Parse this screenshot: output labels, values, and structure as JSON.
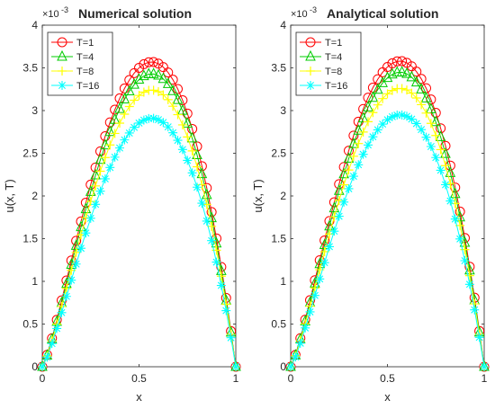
{
  "chart_data": [
    {
      "type": "line",
      "title": "Numerical solution",
      "xlabel": "x",
      "ylabel": "u(x, T)",
      "exponent_base": "×10",
      "exponent_power": "-3",
      "xlim": [
        0,
        1
      ],
      "ylim": [
        0,
        4
      ],
      "xticks": [
        "0",
        "0.5",
        "1"
      ],
      "yticks": [
        "0",
        "0.5",
        "1",
        "1.5",
        "2",
        "2.5",
        "3",
        "3.5",
        "4"
      ],
      "legend_position": "top-left",
      "grid": false,
      "series": [
        {
          "name": "T=1",
          "color": "#ff0000",
          "marker": "circle",
          "peak": 3.57
        },
        {
          "name": "T=4",
          "color": "#00cc00",
          "marker": "triangle",
          "peak": 3.43
        },
        {
          "name": "T=8",
          "color": "#ffff00",
          "marker": "plus",
          "peak": 3.24
        },
        {
          "name": "T=16",
          "color": "#00ffff",
          "marker": "star",
          "peak": 2.91
        }
      ],
      "x": [
        0,
        0.025,
        0.05,
        0.075,
        0.1,
        0.125,
        0.15,
        0.175,
        0.2,
        0.225,
        0.25,
        0.275,
        0.3,
        0.325,
        0.35,
        0.375,
        0.4,
        0.425,
        0.45,
        0.475,
        0.5,
        0.525,
        0.55,
        0.575,
        0.6,
        0.625,
        0.65,
        0.675,
        0.7,
        0.725,
        0.75,
        0.775,
        0.8,
        0.825,
        0.85,
        0.875,
        0.9,
        0.925,
        0.95,
        0.975,
        1
      ]
    },
    {
      "type": "line",
      "title": "Analytical solution",
      "xlabel": "x",
      "ylabel": "u(x, T)",
      "exponent_base": "×10",
      "exponent_power": "-3",
      "xlim": [
        0,
        1
      ],
      "ylim": [
        0,
        4
      ],
      "xticks": [
        "0",
        "0.5",
        "1"
      ],
      "yticks": [
        "0",
        "0.5",
        "1",
        "1.5",
        "2",
        "2.5",
        "3",
        "3.5",
        "4"
      ],
      "legend_position": "top-left",
      "grid": false,
      "series": [
        {
          "name": "T=1",
          "color": "#ff0000",
          "marker": "circle",
          "peak": 3.58
        },
        {
          "name": "T=4",
          "color": "#00cc00",
          "marker": "triangle",
          "peak": 3.45
        },
        {
          "name": "T=8",
          "color": "#ffff00",
          "marker": "plus",
          "peak": 3.26
        },
        {
          "name": "T=16",
          "color": "#00ffff",
          "marker": "star",
          "peak": 2.95
        }
      ],
      "x": [
        0,
        0.025,
        0.05,
        0.075,
        0.1,
        0.125,
        0.15,
        0.175,
        0.2,
        0.225,
        0.25,
        0.275,
        0.3,
        0.325,
        0.35,
        0.375,
        0.4,
        0.425,
        0.45,
        0.475,
        0.5,
        0.525,
        0.55,
        0.575,
        0.6,
        0.625,
        0.65,
        0.675,
        0.7,
        0.725,
        0.75,
        0.775,
        0.8,
        0.825,
        0.85,
        0.875,
        0.9,
        0.925,
        0.95,
        0.975,
        1
      ]
    }
  ]
}
